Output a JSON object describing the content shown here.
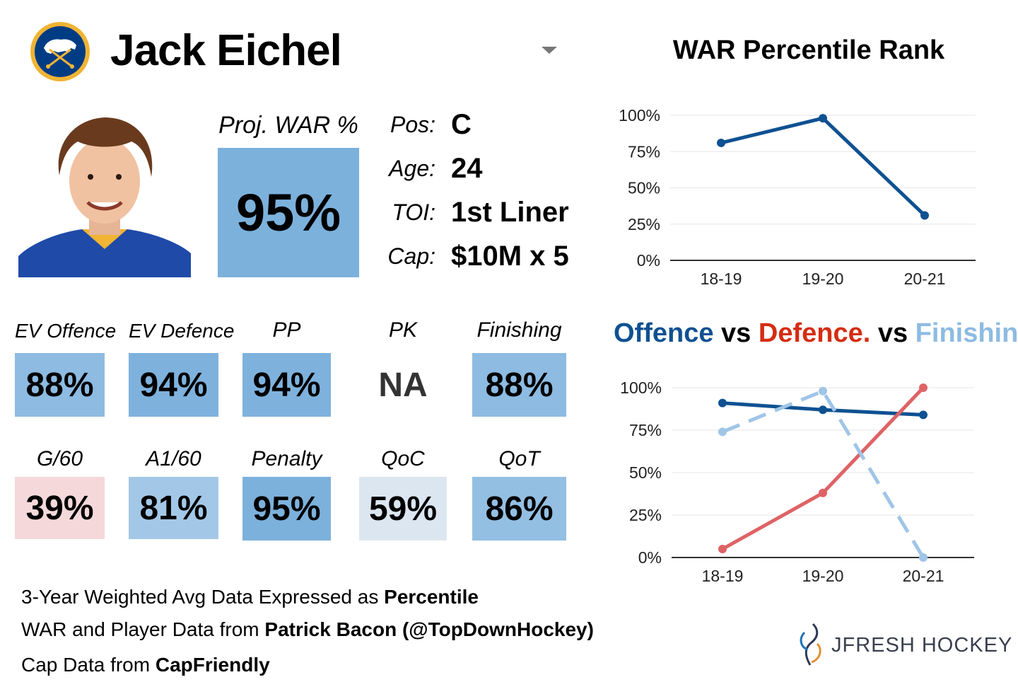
{
  "player": {
    "name": "Jack Eichel",
    "team_logo": "sabres-logo"
  },
  "proj_war": {
    "label": "Proj. WAR %",
    "value": "95%"
  },
  "info": [
    {
      "label": "Pos:",
      "value": "C"
    },
    {
      "label": "Age:",
      "value": "24"
    },
    {
      "label": "TOI:",
      "value": "1st Liner"
    },
    {
      "label": "Cap:",
      "value": "$10M x 5"
    }
  ],
  "stats_row1": [
    {
      "label": "EV Offence",
      "value": "88%",
      "color": "#8dbbe2"
    },
    {
      "label": "EV Defence",
      "value": "94%",
      "color": "#7eb2dd"
    },
    {
      "label": "PP",
      "value": "94%",
      "color": "#7eb2dd"
    },
    {
      "label": "PK",
      "value": "NA",
      "color": "#ffffff"
    },
    {
      "label": "Finishing",
      "value": "88%",
      "color": "#8dbbe2"
    }
  ],
  "stats_row2": [
    {
      "label": "G/60",
      "value": "39%",
      "color": "#f5d9da"
    },
    {
      "label": "A1/60",
      "value": "81%",
      "color": "#a3c8e7"
    },
    {
      "label": "Penalty",
      "value": "95%",
      "color": "#7cb1dc"
    },
    {
      "label": "QoC",
      "value": "59%",
      "color": "#dce6f0"
    },
    {
      "label": "QoT",
      "value": "86%",
      "color": "#93bfe3"
    }
  ],
  "footer": {
    "line1_prefix": "3-Year Weighted Avg Data Expressed as ",
    "line1_bold": "Percentile",
    "line2_prefix": "WAR and Player Data from ",
    "line2_bold": "Patrick Bacon (@TopDownHockey)",
    "line3_prefix": "Cap Data from ",
    "line3_bold": "CapFriendly"
  },
  "brand": {
    "name": "JFRESH HOCKEY"
  },
  "chart_data": [
    {
      "type": "line",
      "title": "WAR Percentile Rank",
      "categories": [
        "18-19",
        "19-20",
        "20-21"
      ],
      "ylim": [
        0,
        100
      ],
      "yticks": [
        "0%",
        "25%",
        "50%",
        "75%",
        "100%"
      ],
      "series": [
        {
          "name": "WAR",
          "values": [
            81,
            98,
            31
          ],
          "color": "#0f5192",
          "dash": false
        }
      ]
    },
    {
      "type": "line",
      "title_parts": [
        {
          "text": "Offence",
          "color": "#0f5192"
        },
        {
          "text": " vs ",
          "color": "#000000"
        },
        {
          "text": "Defence.",
          "color": "#d42d12"
        },
        {
          "text": " vs ",
          "color": "#000000"
        },
        {
          "text": "Finishing",
          "color": "#8dbbe2"
        }
      ],
      "categories": [
        "18-19",
        "19-20",
        "20-21"
      ],
      "ylim": [
        0,
        100
      ],
      "yticks": [
        "0%",
        "25%",
        "50%",
        "75%",
        "100%"
      ],
      "series": [
        {
          "name": "Offence",
          "values": [
            91,
            87,
            84
          ],
          "color": "#0f5192",
          "dash": false
        },
        {
          "name": "Defence",
          "values": [
            5,
            38,
            100
          ],
          "color": "#de6366",
          "dash": false
        },
        {
          "name": "Finishing",
          "values": [
            74,
            98,
            0
          ],
          "color": "#9fc5e7",
          "dash": true
        }
      ]
    }
  ]
}
